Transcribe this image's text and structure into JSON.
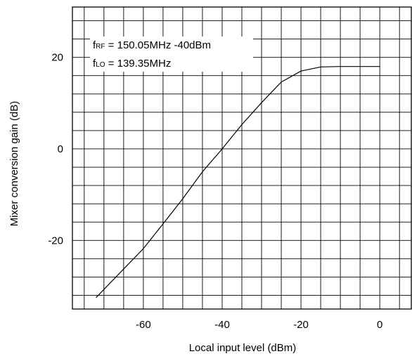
{
  "chart_data": {
    "type": "line",
    "xlabel": "Local input level (dBm)",
    "ylabel": "Mixer conversion gain (dB)",
    "xlim": [
      -78,
      8
    ],
    "ylim": [
      -35,
      31
    ],
    "x_ticks": [
      -60,
      -40,
      -20,
      0
    ],
    "y_ticks": [
      -20,
      0,
      20
    ],
    "x_tick_labels": [
      "-60",
      "-40",
      "-20",
      "0"
    ],
    "y_tick_labels": [
      "-20",
      "0",
      "20"
    ],
    "grid": true,
    "x_grid_step": 5,
    "y_grid_step": 4,
    "annotations": [
      {
        "prefix": "f",
        "sub": "RF",
        "text": " = 150.05MHz -40dBm"
      },
      {
        "prefix": "f",
        "sub": "LO",
        "text": " = 139.35MHz"
      }
    ],
    "series": [
      {
        "x": [
          -72,
          -60,
          -55,
          -50,
          -45,
          -40,
          -35,
          -30,
          -25,
          -20,
          -15,
          -10,
          0
        ],
        "y": [
          -32.5,
          -21.8,
          -16.4,
          -10.9,
          -5.0,
          0,
          5.3,
          10.1,
          14.6,
          17.0,
          17.9,
          18.0,
          18.0
        ]
      }
    ]
  }
}
